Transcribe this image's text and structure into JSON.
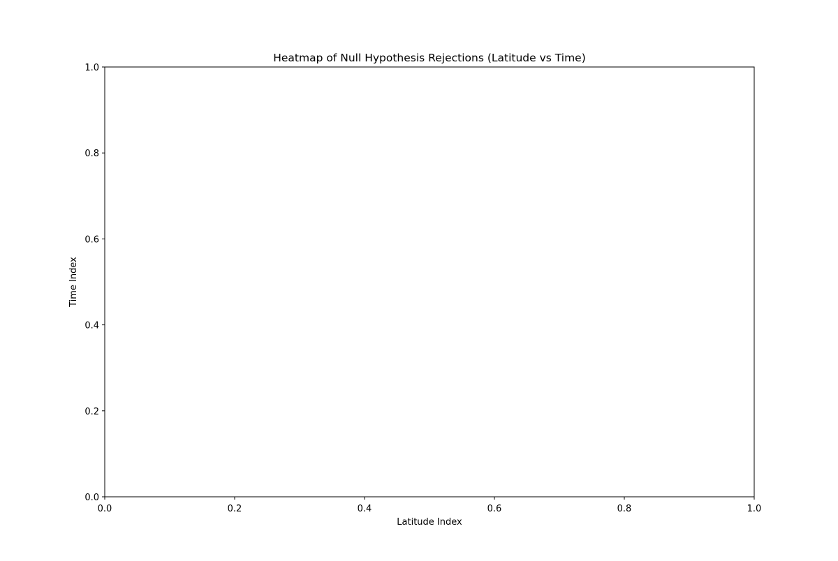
{
  "chart_data": {
    "type": "heatmap",
    "title": "Heatmap of Null Hypothesis Rejections (Latitude vs Time)",
    "xlabel": "Latitude Index",
    "ylabel": "Time Index",
    "xlim": [
      0.0,
      1.0
    ],
    "ylim": [
      0.0,
      1.0
    ],
    "x_ticks": [
      "0.0",
      "0.2",
      "0.4",
      "0.6",
      "0.8",
      "1.0"
    ],
    "y_ticks": [
      "0.0",
      "0.2",
      "0.4",
      "0.6",
      "0.8",
      "1.0"
    ],
    "values": [],
    "grid": false,
    "legend": "none"
  },
  "colors": {
    "background": "#ffffff",
    "axes_face": "#ffffff",
    "spine": "#000000",
    "text": "#000000"
  }
}
